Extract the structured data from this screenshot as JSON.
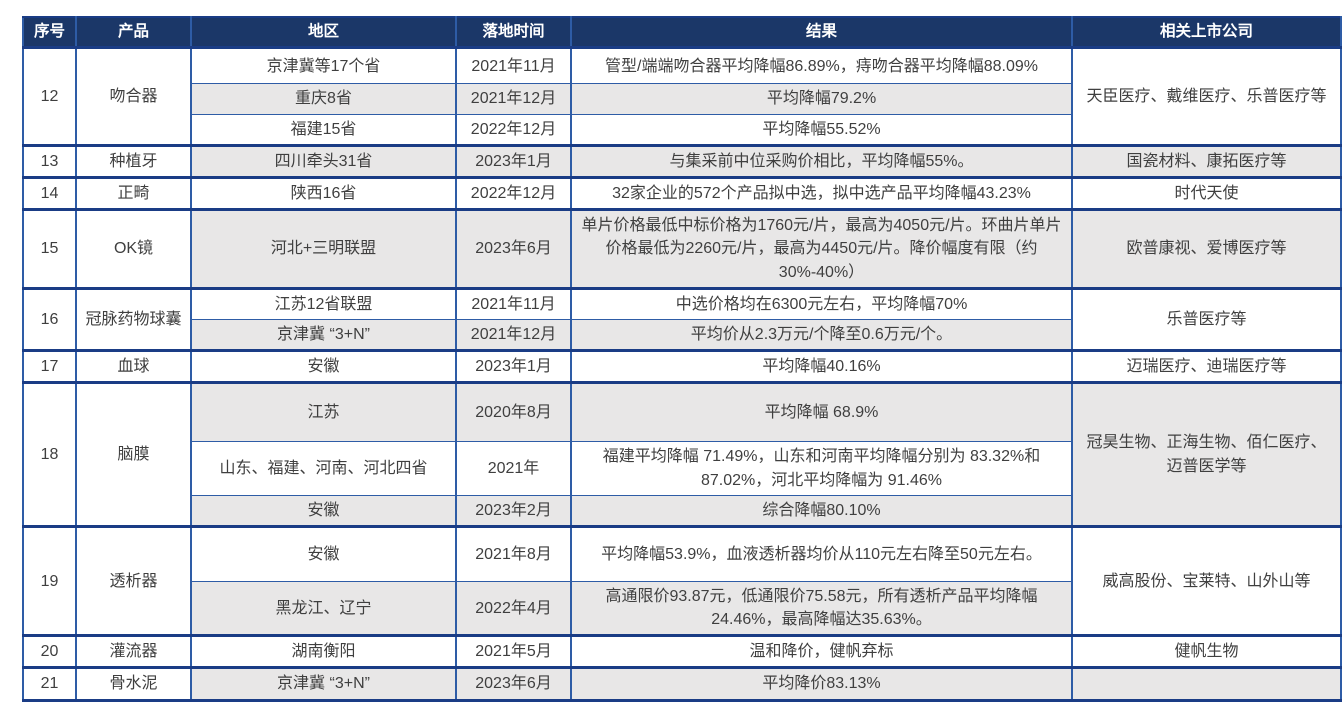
{
  "colors": {
    "header_bg": "#1B3768",
    "header_text": "#FFFFFF",
    "border": "#2E5CA6",
    "border_heavy": "#1A3C85",
    "row_shade": "#E8E7E7",
    "row_plain": "#FFFFFF",
    "text": "#3F3F3F"
  },
  "table": {
    "columns": [
      "序号",
      "产品",
      "地区",
      "落地时间",
      "结果",
      "相关上市公司"
    ],
    "groups": [
      {
        "no": "12",
        "product": "吻合器",
        "company": "天臣医疗、戴维医疗、乐普医疗等",
        "company_shaded": false,
        "rows": [
          {
            "region": "京津冀等17个省",
            "date": "2021年11月",
            "result": "管型/端端吻合器平均降幅86.89%，痔吻合器平均降幅88.09%",
            "shaded": false
          },
          {
            "region": "重庆8省",
            "date": "2021年12月",
            "result": "平均降幅79.2%",
            "shaded": true
          },
          {
            "region": "福建15省",
            "date": "2022年12月",
            "result": "平均降幅55.52%",
            "shaded": false
          }
        ]
      },
      {
        "no": "13",
        "product": "种植牙",
        "company": "国瓷材料、康拓医疗等",
        "company_shaded": true,
        "rows": [
          {
            "region": "四川牵头31省",
            "date": "2023年1月",
            "result": "与集采前中位采购价相比，平均降幅55%。",
            "shaded": true
          }
        ]
      },
      {
        "no": "14",
        "product": "正畸",
        "company": "时代天使",
        "company_shaded": false,
        "rows": [
          {
            "region": "陕西16省",
            "date": "2022年12月",
            "result": "32家企业的572个产品拟中选，拟中选产品平均降幅43.23%",
            "shaded": false
          }
        ]
      },
      {
        "no": "15",
        "product": "OK镜",
        "company": "欧普康视、爱博医疗等",
        "company_shaded": true,
        "rows": [
          {
            "region": "河北+三明联盟",
            "date": "2023年6月",
            "result": "单片价格最低中标价格为1760元/片，最高为4050元/片。环曲片单片价格最低为2260元/片，最高为4450元/片。降价幅度有限（约30%-40%）",
            "shaded": true
          }
        ]
      },
      {
        "no": "16",
        "product": "冠脉药物球囊",
        "company": "乐普医疗等",
        "company_shaded": false,
        "rows": [
          {
            "region": "江苏12省联盟",
            "date": "2021年11月",
            "result": "中选价格均在6300元左右，平均降幅70%",
            "shaded": false
          },
          {
            "region": "京津冀 “3+N”",
            "date": "2021年12月",
            "result": "平均价从2.3万元/个降至0.6万元/个。",
            "shaded": true
          }
        ]
      },
      {
        "no": "17",
        "product": "血球",
        "company": "迈瑞医疗、迪瑞医疗等",
        "company_shaded": false,
        "rows": [
          {
            "region": "安徽",
            "date": "2023年1月",
            "result": "平均降幅40.16%",
            "shaded": false
          }
        ]
      },
      {
        "no": "18",
        "product": "脑膜",
        "company": "冠昊生物、正海生物、佰仁医疗、迈普医学等",
        "company_shaded": true,
        "rows": [
          {
            "region": "江苏",
            "date": "2020年8月",
            "result": "平均降幅 68.9%",
            "shaded": true
          },
          {
            "region": "山东、福建、河南、河北四省",
            "date": "2021年",
            "result": "福建平均降幅 71.49%，山东和河南平均降幅分别为 83.32%和 87.02%，河北平均降幅为 91.46%",
            "shaded": false
          },
          {
            "region": "安徽",
            "date": "2023年2月",
            "result": "综合降幅80.10%",
            "shaded": true
          }
        ]
      },
      {
        "no": "19",
        "product": "透析器",
        "company": "威高股份、宝莱特、山外山等",
        "company_shaded": false,
        "rows": [
          {
            "region": "安徽",
            "date": "2021年8月",
            "result": "平均降幅53.9%，血液透析器均价从110元左右降至50元左右。",
            "shaded": false
          },
          {
            "region": "黑龙江、辽宁",
            "date": "2022年4月",
            "result": "高通限价93.87元，低通限价75.58元，所有透析产品平均降幅24.46%，最高降幅达35.63%。",
            "shaded": true
          }
        ]
      },
      {
        "no": "20",
        "product": "灌流器",
        "company": "健帆生物",
        "company_shaded": false,
        "rows": [
          {
            "region": "湖南衡阳",
            "date": "2021年5月",
            "result": "温和降价，健帆弃标",
            "shaded": false
          }
        ]
      },
      {
        "no": "21",
        "product": "骨水泥",
        "company": "",
        "company_shaded": true,
        "rows": [
          {
            "region": "京津冀 “3+N”",
            "date": "2023年6月",
            "result": "平均降价83.13%",
            "shaded": true
          }
        ]
      }
    ]
  }
}
